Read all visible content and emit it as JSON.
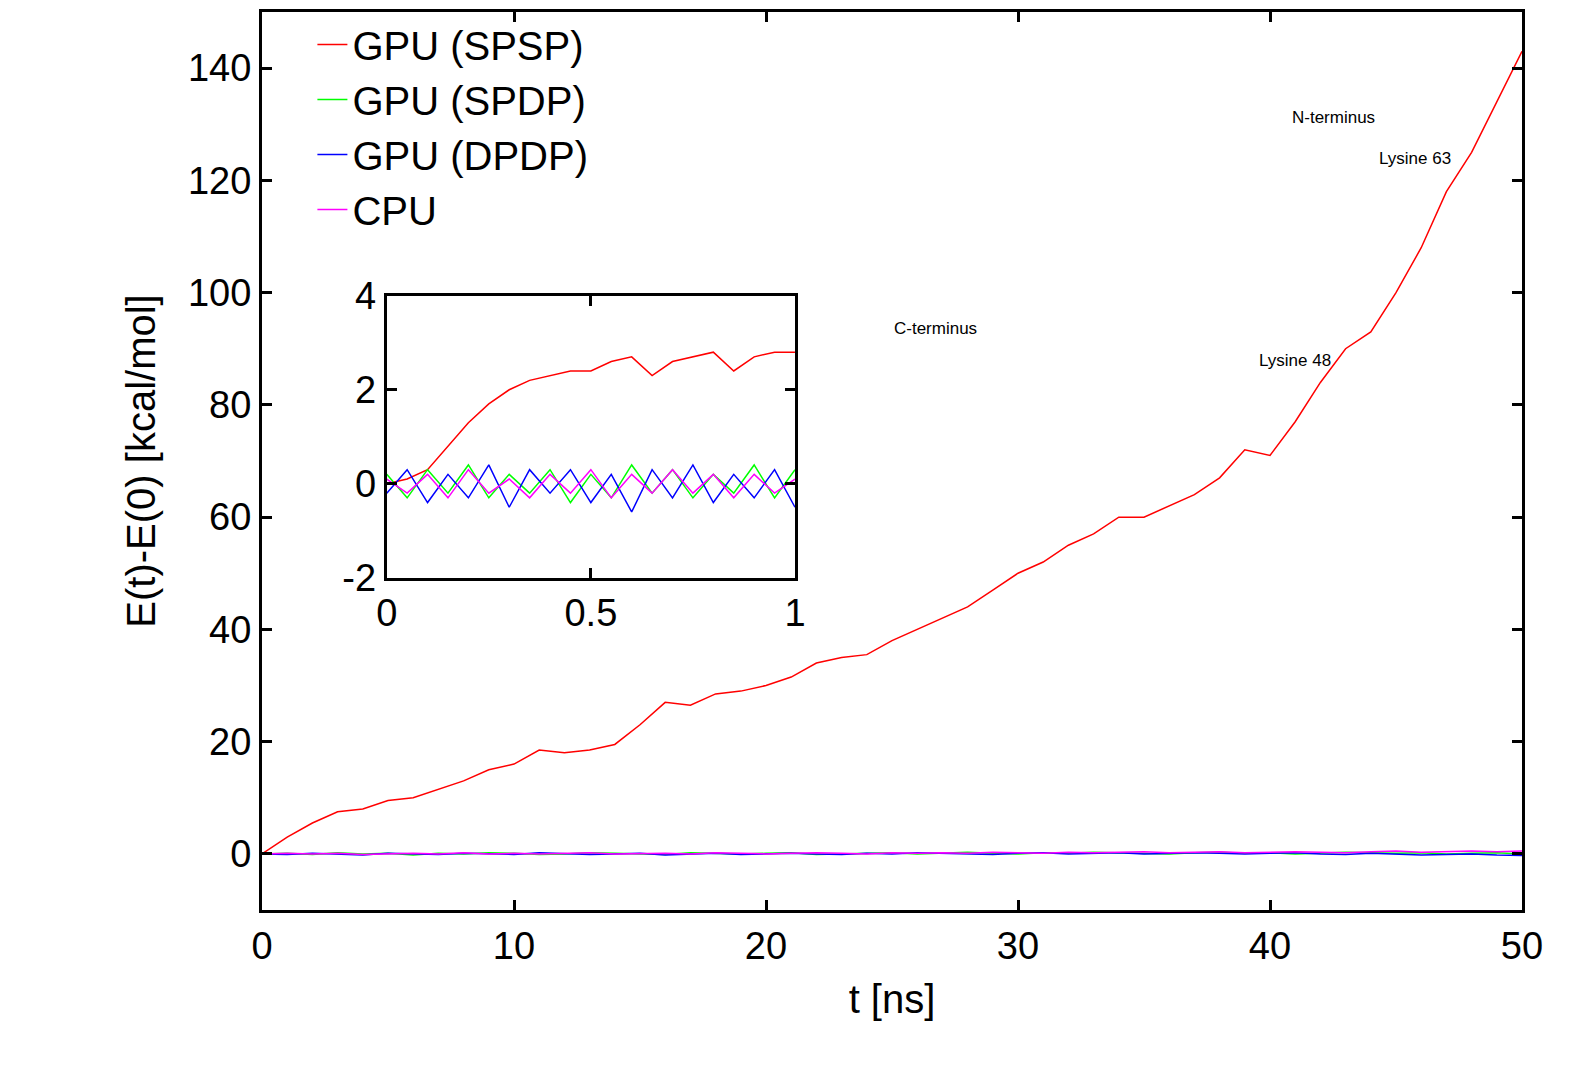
{
  "chart_data": [
    {
      "type": "line",
      "x_label": "t [ns]",
      "y_label": "E(t)-E(0) [kcal/mol]",
      "xlim": [
        0,
        50
      ],
      "xticks": [
        0,
        10,
        20,
        30,
        40,
        50
      ],
      "ylim": [
        -10,
        150
      ],
      "yticks": [
        0,
        20,
        40,
        60,
        80,
        100,
        120,
        140
      ],
      "legend": "upper left",
      "annotations": [
        "N-terminus",
        "Lysine 63",
        "C-terminus",
        "Lysine 48"
      ],
      "x": [
        0,
        1,
        2,
        3,
        4,
        5,
        6,
        7,
        8,
        9,
        10,
        11,
        12,
        13,
        14,
        15,
        16,
        17,
        18,
        19,
        20,
        21,
        22,
        23,
        24,
        25,
        26,
        27,
        28,
        29,
        30,
        31,
        32,
        33,
        34,
        35,
        36,
        37,
        38,
        39,
        40,
        41,
        42,
        43,
        44,
        45,
        46,
        47,
        48,
        49,
        50
      ],
      "series": [
        {
          "name": "GPU (SPSP)",
          "color": "#ff0000",
          "values": [
            0,
            3,
            5.5,
            7.5,
            8,
            9.5,
            10,
            11.5,
            13,
            15,
            16,
            18.5,
            18,
            18.5,
            19.5,
            23,
            27,
            26.5,
            28.5,
            29,
            30,
            31.5,
            34,
            35,
            35.5,
            38,
            40,
            42,
            44,
            47,
            50,
            52,
            55,
            57,
            60,
            60,
            62,
            64,
            67,
            72,
            71,
            77,
            84,
            90,
            93,
            100,
            108,
            118,
            125,
            134,
            143
          ]
        },
        {
          "name": "GPU (SPDP)",
          "color": "#00ff00",
          "values": [
            0,
            0.1,
            -0.1,
            0.2,
            0,
            0.1,
            -0.2,
            0.1,
            0,
            0.2,
            0.1,
            -0.1,
            0,
            0.2,
            0.1,
            0,
            -0.1,
            0.2,
            0.1,
            0,
            0.1,
            0.2,
            -0.1,
            0,
            0.1,
            0.2,
            0,
            0.1,
            0.3,
            0.1,
            0,
            0.2,
            0.1,
            0.3,
            0.2,
            0.1,
            0,
            0.2,
            0.3,
            0.1,
            0.2,
            0,
            0.1,
            0.3,
            0.2,
            0.1,
            0.2,
            0,
            0.1,
            0.2,
            0
          ]
        },
        {
          "name": "GPU (DPDP)",
          "color": "#0000ff",
          "values": [
            0,
            -0.1,
            0.1,
            0,
            -0.2,
            0.1,
            0,
            -0.1,
            0.1,
            0,
            -0.1,
            0.2,
            0,
            -0.1,
            0,
            0.1,
            -0.2,
            0,
            0.1,
            -0.1,
            0,
            0.1,
            0,
            -0.1,
            0.1,
            0,
            0.2,
            0.1,
            0,
            -0.1,
            0.1,
            0.2,
            0,
            0.1,
            0.2,
            0,
            0.1,
            0.2,
            0.1,
            0,
            0.1,
            0.2,
            0,
            -0.1,
            0.1,
            0,
            -0.2,
            -0.1,
            0,
            -0.2,
            -0.3
          ]
        },
        {
          "name": "CPU",
          "color": "#ff00ff",
          "values": [
            0,
            0.1,
            0,
            0.1,
            -0.1,
            0,
            0.1,
            0,
            0.2,
            0,
            0.1,
            0,
            0.1,
            0.2,
            0,
            0.1,
            0.1,
            0,
            0.2,
            0.1,
            0,
            0.1,
            0.2,
            0.1,
            0,
            0.2,
            0.1,
            0.2,
            0.1,
            0.3,
            0.2,
            0.1,
            0.3,
            0.2,
            0.3,
            0.4,
            0.2,
            0.3,
            0.4,
            0.2,
            0.3,
            0.4,
            0.3,
            0.2,
            0.4,
            0.5,
            0.3,
            0.4,
            0.5,
            0.4,
            0.5
          ]
        }
      ]
    },
    {
      "type": "line",
      "xlim": [
        0,
        1
      ],
      "xticks": [
        0,
        0.5,
        1
      ],
      "ylim": [
        -2,
        4
      ],
      "yticks": [
        -2,
        0,
        2,
        4
      ],
      "x": [
        0,
        0.05,
        0.1,
        0.15,
        0.2,
        0.25,
        0.3,
        0.35,
        0.4,
        0.45,
        0.5,
        0.55,
        0.6,
        0.65,
        0.7,
        0.75,
        0.8,
        0.85,
        0.9,
        0.95,
        1
      ],
      "series": [
        {
          "name": "GPU (SPSP)",
          "color": "#ff0000",
          "values": [
            0,
            0.1,
            0.3,
            0.8,
            1.3,
            1.7,
            2.0,
            2.2,
            2.3,
            2.4,
            2.4,
            2.6,
            2.7,
            2.3,
            2.6,
            2.7,
            2.8,
            2.4,
            2.7,
            2.8,
            2.8
          ]
        },
        {
          "name": "GPU (SPDP)",
          "color": "#00ff00",
          "values": [
            0.2,
            -0.3,
            0.3,
            -0.2,
            0.4,
            -0.3,
            0.2,
            -0.2,
            0.3,
            -0.4,
            0.2,
            -0.3,
            0.4,
            -0.2,
            0.3,
            -0.3,
            0.2,
            -0.2,
            0.4,
            -0.3,
            0.3
          ]
        },
        {
          "name": "GPU (DPDP)",
          "color": "#0000ff",
          "values": [
            -0.2,
            0.3,
            -0.4,
            0.2,
            -0.3,
            0.4,
            -0.5,
            0.3,
            -0.2,
            0.3,
            -0.4,
            0.2,
            -0.6,
            0.3,
            -0.3,
            0.4,
            -0.4,
            0.2,
            -0.3,
            0.3,
            -0.5
          ]
        },
        {
          "name": "CPU",
          "color": "#ff00ff",
          "values": [
            0.1,
            -0.2,
            0.2,
            -0.3,
            0.3,
            -0.2,
            0.1,
            -0.3,
            0.2,
            -0.2,
            0.3,
            -0.3,
            0.2,
            -0.2,
            0.3,
            -0.2,
            0.2,
            -0.3,
            0.2,
            -0.2,
            0.1
          ]
        }
      ]
    }
  ]
}
